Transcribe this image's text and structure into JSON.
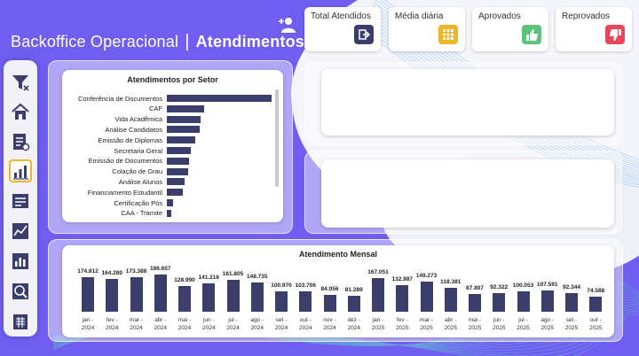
{
  "header": {
    "title_part1": "Backoffice Operacional",
    "title_separator": "|",
    "title_part2": "Atendimentos",
    "user_icon": "add-user-icon"
  },
  "kpis": [
    {
      "label": "Total Atendidos",
      "icon": "exit-icon",
      "color": "#3b3d6b"
    },
    {
      "label": "Média diária",
      "icon": "grid-icon",
      "color": "#f0b429"
    },
    {
      "label": "Aprovados",
      "icon": "thumbs-up-icon",
      "color": "#5cc47a"
    },
    {
      "label": "Reprovados",
      "icon": "thumbs-down-icon",
      "color": "#e8465a"
    }
  ],
  "sidebar": {
    "items": [
      {
        "icon": "filter-icon"
      },
      {
        "icon": "home-icon"
      },
      {
        "icon": "report-icon"
      },
      {
        "icon": "bar-chart-icon",
        "active": true
      },
      {
        "icon": "table-icon"
      },
      {
        "icon": "line-chart-icon"
      },
      {
        "icon": "analytics-icon"
      },
      {
        "icon": "search-chart-icon"
      },
      {
        "icon": "calendar-icon"
      }
    ]
  },
  "setor_chart": {
    "title": "Atendimentos por Setor",
    "chart_data": {
      "type": "bar",
      "orientation": "horizontal",
      "categories": [
        "Conferência de Documentos",
        "CAF",
        "Vida Acadêmica",
        "Análise Candidatos",
        "Emissão de Diplomas",
        "Secretaria Geral",
        "Emissão de Documentos",
        "Colação de Grau",
        "Análise Alunos",
        "Financiamento Estudantil",
        "Certificação Pós",
        "CAA - Tramite"
      ],
      "values": [
        100,
        36,
        32,
        31,
        27,
        23,
        21,
        20,
        17,
        15,
        6,
        4
      ]
    }
  },
  "mensal_chart": {
    "title": "Atendimento Mensal",
    "chart_data": {
      "type": "bar",
      "categories": [
        [
          "jan -",
          "2024"
        ],
        [
          "fev -",
          "2024"
        ],
        [
          "mar -",
          "2024"
        ],
        [
          "abr -",
          "2024"
        ],
        [
          "mai -",
          "2024"
        ],
        [
          "jun -",
          "2024"
        ],
        [
          "jul -",
          "2024"
        ],
        [
          "ago -",
          "2024"
        ],
        [
          "set -",
          "2024"
        ],
        [
          "out -",
          "2024"
        ],
        [
          "nov -",
          "2024"
        ],
        [
          "dez -",
          "2024"
        ],
        [
          "jan -",
          "2025"
        ],
        [
          "fev -",
          "2025"
        ],
        [
          "mar -",
          "2025"
        ],
        [
          "abr -",
          "2025"
        ],
        [
          "mai -",
          "2025"
        ],
        [
          "jun -",
          "2025"
        ],
        [
          "jul -",
          "2025"
        ],
        [
          "ago -",
          "2025"
        ],
        [
          "set -",
          "2025"
        ],
        [
          "out -",
          "2025"
        ]
      ],
      "values": [
        174812,
        164280,
        173388,
        186657,
        128990,
        141216,
        161805,
        148735,
        100970,
        103706,
        84056,
        81289,
        167051,
        132987,
        149273,
        118381,
        87807,
        92322,
        100053,
        107591,
        92344,
        74588
      ],
      "value_labels": [
        "174.812",
        "164.280",
        "173.388",
        "186.657",
        "128.990",
        "141.216",
        "161.805",
        "148.735",
        "100.970",
        "103.706",
        "84.056",
        "81.289",
        "167.051",
        "132.987",
        "149.273",
        "118.381",
        "87.807",
        "92.322",
        "100.053",
        "107.591",
        "92.344",
        "74.588"
      ]
    }
  }
}
